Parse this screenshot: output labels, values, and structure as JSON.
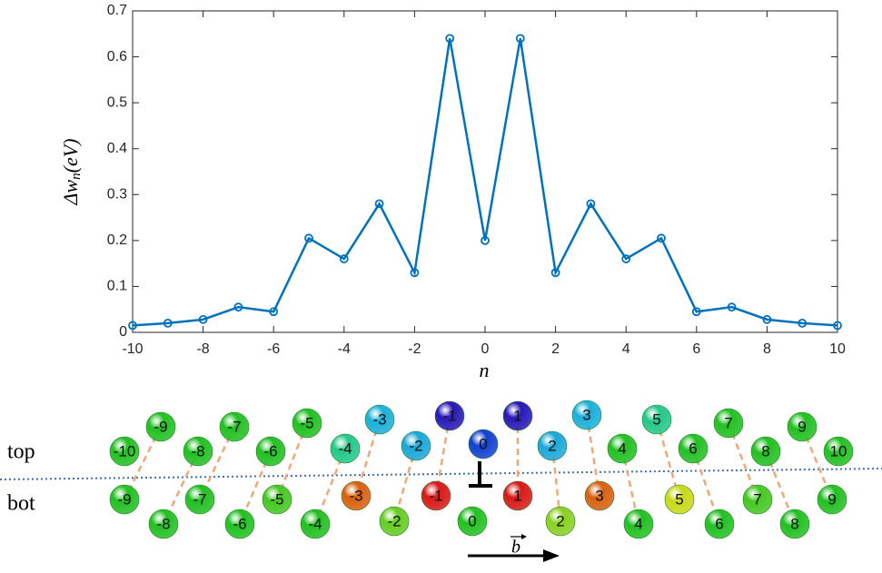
{
  "chart_data": {
    "type": "line",
    "x": [
      -10,
      -9,
      -8,
      -7,
      -6,
      -5,
      -4,
      -3,
      -2,
      -1,
      0,
      1,
      2,
      3,
      4,
      5,
      6,
      7,
      8,
      9,
      10
    ],
    "series": [
      {
        "color": "#0072bd",
        "values": [
          0.015,
          0.02,
          0.028,
          0.055,
          0.045,
          0.205,
          0.16,
          0.28,
          0.13,
          0.64,
          0.2,
          0.64,
          0.13,
          0.28,
          0.16,
          0.205,
          0.045,
          0.055,
          0.028,
          0.02,
          0.015
        ]
      }
    ],
    "xlim": [
      -10,
      10
    ],
    "ylim": [
      0,
      0.7
    ],
    "xticks": [
      -10,
      -8,
      -6,
      -4,
      -2,
      0,
      2,
      4,
      6,
      8,
      10
    ],
    "yticks": [
      0,
      0.1,
      0.2,
      0.3,
      0.4,
      0.5,
      0.6,
      0.7
    ],
    "xlabel": "n",
    "ylabel": [
      "Δw",
      "n",
      "(eV)"
    ],
    "marker": "circle"
  },
  "diagram": {
    "row_labels": [
      "top",
      "bot"
    ],
    "top": {
      "labels": [
        "-10",
        "-9",
        "-8",
        "-7",
        "-6",
        "-5",
        "-4",
        "-3",
        "-2",
        "-1",
        "0",
        "1",
        "2",
        "3",
        "4",
        "5",
        "6",
        "7",
        "8",
        "9",
        "10"
      ],
      "colors": [
        "#22c022",
        "#22c022",
        "#22c022",
        "#22c022",
        "#22c022",
        "#22c022",
        "#22c88a",
        "#1ab0d8",
        "#1aa8d8",
        "#2818b8",
        "#1040d0",
        "#2818b8",
        "#1aa8d8",
        "#1ab0d8",
        "#22c022",
        "#22c88a",
        "#22c022",
        "#22c022",
        "#22c022",
        "#22c022",
        "#22c022"
      ]
    },
    "bot": {
      "labels": [
        "-9",
        "-8",
        "-7",
        "-6",
        "-5",
        "-4",
        "-3",
        "-2",
        "-1",
        "0",
        "1",
        "2",
        "3",
        "4",
        "5",
        "6",
        "7",
        "8",
        "9"
      ],
      "colors": [
        "#22c022",
        "#22c022",
        "#22c022",
        "#22c022",
        "#44c822",
        "#22c022",
        "#d86010",
        "#66cc22",
        "#d81818",
        "#22c022",
        "#d81818",
        "#8ad020",
        "#d86010",
        "#22c022",
        "#c8d818",
        "#22c022",
        "#44c822",
        "#22c022",
        "#22c022"
      ]
    },
    "vector": "b"
  }
}
